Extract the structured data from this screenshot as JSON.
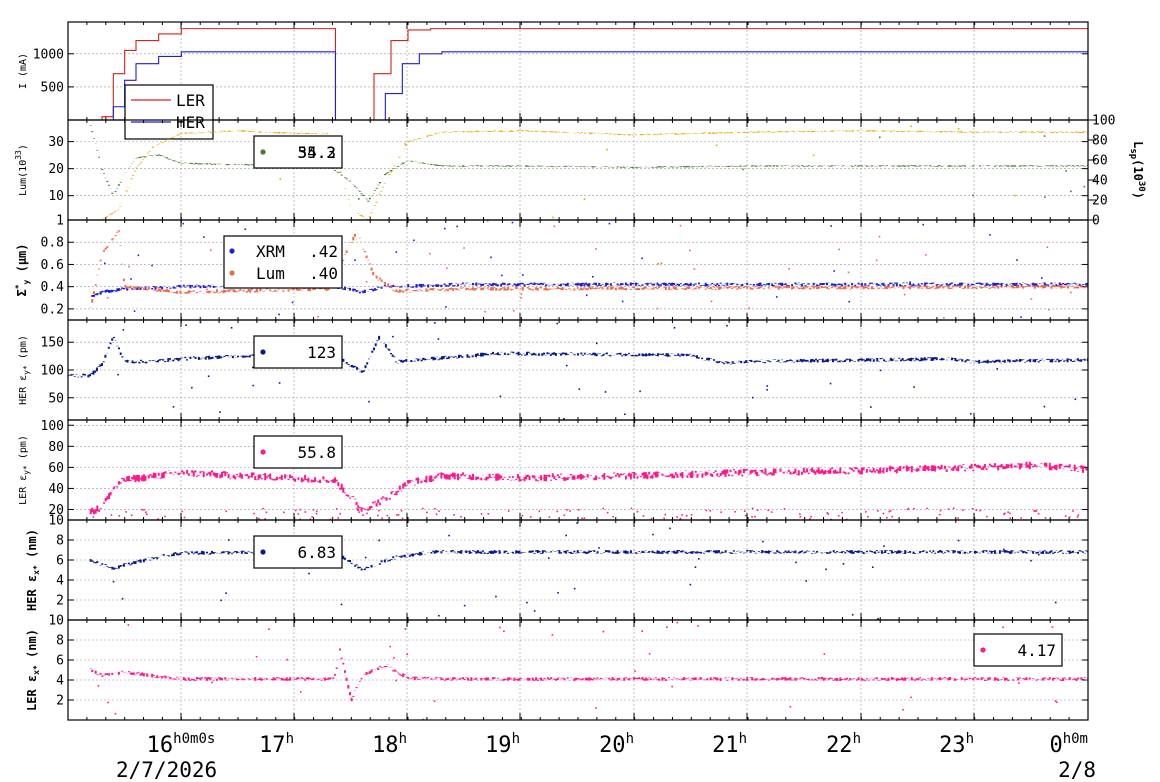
{
  "chart_data": {
    "type": "line",
    "x_axis": {
      "ticks": [
        {
          "h": "16",
          "sup": "h0m0s"
        },
        {
          "h": "17",
          "sup": "h"
        },
        {
          "h": "18",
          "sup": "h"
        },
        {
          "h": "19",
          "sup": "h"
        },
        {
          "h": "20",
          "sup": "h"
        },
        {
          "h": "21",
          "sup": "h"
        },
        {
          "h": "22",
          "sup": "h"
        },
        {
          "h": "23",
          "sup": "h"
        },
        {
          "h": "0",
          "sup": "h0m"
        }
      ],
      "start_date": "2/7/2026",
      "end_date": "2/8",
      "range": [
        "2026-02-07 15:00",
        "2026-02-08 00:00"
      ]
    },
    "panels": [
      {
        "id": "current",
        "ylabel": "I (mA)",
        "ylim": [
          0,
          1480
        ],
        "yticks": [
          "500",
          "1000"
        ],
        "ytick_values": [
          500,
          1000
        ],
        "legend": [
          {
            "name": "LER",
            "color": "#d62020"
          },
          {
            "name": "HER",
            "color": "#1f1fd6"
          }
        ],
        "series": [
          {
            "name": "LER",
            "color": "#d62020",
            "points": [
              [
                15.2,
                0
              ],
              [
                15.3,
                50
              ],
              [
                15.4,
                700
              ],
              [
                15.5,
                1050
              ],
              [
                15.6,
                1200
              ],
              [
                15.8,
                1300
              ],
              [
                16.0,
                1380
              ],
              [
                17.35,
                1380
              ],
              [
                17.36,
                0
              ],
              [
                17.6,
                0
              ],
              [
                17.7,
                700
              ],
              [
                17.85,
                1200
              ],
              [
                18.0,
                1360
              ],
              [
                18.2,
                1380
              ],
              [
                24.0,
                1380
              ]
            ]
          },
          {
            "name": "HER",
            "color": "#1f1fd6",
            "points": [
              [
                15.2,
                0
              ],
              [
                15.4,
                200
              ],
              [
                15.5,
                600
              ],
              [
                15.6,
                850
              ],
              [
                15.8,
                960
              ],
              [
                16.0,
                1030
              ],
              [
                17.35,
                1030
              ],
              [
                17.36,
                0
              ],
              [
                17.7,
                0
              ],
              [
                17.8,
                400
              ],
              [
                17.95,
                850
              ],
              [
                18.1,
                1000
              ],
              [
                18.3,
                1030
              ],
              [
                24.0,
                1030
              ]
            ]
          }
        ]
      },
      {
        "id": "lum",
        "ylabel": "Lum(10",
        "ylabel_sup": "33",
        "ylabel_tail": ")",
        "ylim": [
          1,
          38
        ],
        "yticks": [
          "1",
          "10",
          "20",
          "30"
        ],
        "ytick_values": [
          1,
          10,
          20,
          30
        ],
        "y2label": "L",
        "y2label_sub": "sp",
        "y2label_mid": "(10",
        "y2label_sup": "30",
        "y2label_tail": ")",
        "y2lim": [
          0,
          100
        ],
        "y2ticks": [
          "0",
          "20",
          "40",
          "60",
          "80",
          "100"
        ],
        "y2tick_values": [
          0,
          20,
          40,
          60,
          80,
          100
        ],
        "legend": [
          {
            "value": "34.3",
            "color": "#e6a800"
          },
          {
            "value": "55.2",
            "color": "#4a7a3a"
          }
        ],
        "series": [
          {
            "name": "lum",
            "color": "#e6a800",
            "points": [
              [
                15.3,
                1
              ],
              [
                15.45,
                5
              ],
              [
                15.6,
                20
              ],
              [
                15.75,
                28
              ],
              [
                16.0,
                33
              ],
              [
                16.5,
                34
              ],
              [
                17.0,
                33
              ],
              [
                17.3,
                33
              ],
              [
                17.5,
                5
              ],
              [
                17.65,
                1
              ],
              [
                17.8,
                15
              ],
              [
                18.0,
                30
              ],
              [
                18.3,
                33.5
              ],
              [
                19.0,
                34
              ],
              [
                20.0,
                32.5
              ],
              [
                21.0,
                33.5
              ],
              [
                22.0,
                34
              ],
              [
                23.0,
                33.5
              ],
              [
                24.0,
                33.5
              ]
            ]
          },
          {
            "name": "specific",
            "color": "#4a7a3a",
            "points": [
              [
                15.2,
                36
              ],
              [
                15.3,
                20
              ],
              [
                15.4,
                10
              ],
              [
                15.5,
                18
              ],
              [
                15.6,
                24
              ],
              [
                15.8,
                25
              ],
              [
                16.0,
                22
              ],
              [
                17.0,
                21
              ],
              [
                17.3,
                21
              ],
              [
                17.5,
                15
              ],
              [
                17.65,
                8
              ],
              [
                17.8,
                18
              ],
              [
                18.0,
                23
              ],
              [
                18.3,
                21
              ],
              [
                19.0,
                21
              ],
              [
                20.0,
                20.5
              ],
              [
                21.0,
                21
              ],
              [
                22.0,
                21
              ],
              [
                23.0,
                21
              ],
              [
                24.0,
                21
              ]
            ]
          }
        ]
      },
      {
        "id": "sigma",
        "ylabel": "Σ",
        "ylabel_sup": "*",
        "ylabel_sub": "y",
        "ylabel_tail": " (μm)",
        "ylim": [
          0.1,
          1.0
        ],
        "yticks": [
          "0.2",
          "0.4",
          "0.6",
          "0.8"
        ],
        "ytick_values": [
          0.2,
          0.4,
          0.6,
          0.8
        ],
        "legend": [
          {
            "name": "XRM",
            "value": ".42",
            "color": "#1f1fd6"
          },
          {
            "name": "Lum",
            "value": ".40",
            "color": "#f06a4a"
          }
        ],
        "series": [
          {
            "name": "XRM",
            "color": "#1f1fd6",
            "points": [
              [
                15.2,
                0.3
              ],
              [
                15.3,
                0.35
              ],
              [
                15.5,
                0.38
              ],
              [
                16.0,
                0.4
              ],
              [
                17.3,
                0.41
              ],
              [
                17.6,
                0.35
              ],
              [
                17.8,
                0.4
              ],
              [
                18.5,
                0.42
              ],
              [
                24.0,
                0.42
              ]
            ]
          },
          {
            "name": "Lum",
            "color": "#f06a4a",
            "points": [
              [
                15.2,
                0.2
              ],
              [
                15.3,
                0.7
              ],
              [
                15.45,
                0.9
              ],
              [
                15.5,
                0.4
              ],
              [
                16.0,
                0.35
              ],
              [
                17.3,
                0.38
              ],
              [
                17.55,
                0.9
              ],
              [
                17.7,
                0.5
              ],
              [
                17.9,
                0.36
              ],
              [
                18.5,
                0.38
              ],
              [
                24.0,
                0.4
              ]
            ]
          }
        ]
      },
      {
        "id": "her_ey",
        "ylabel": "HER ε",
        "ylabel_sub": "y*",
        "ylabel_tail": " (pm)",
        "ylim": [
          10,
          190
        ],
        "yticks": [
          "50",
          "100",
          "150"
        ],
        "ytick_values": [
          50,
          100,
          150
        ],
        "legend": [
          {
            "value": "123",
            "color": "#0a1a8a"
          }
        ],
        "series": [
          {
            "name": "HER εy",
            "color": "#0a1a8a",
            "points": [
              [
                15.0,
                90
              ],
              [
                15.2,
                90
              ],
              [
                15.3,
                110
              ],
              [
                15.4,
                160
              ],
              [
                15.5,
                115
              ],
              [
                15.7,
                115
              ],
              [
                16.0,
                120
              ],
              [
                16.5,
                125
              ],
              [
                17.0,
                125
              ],
              [
                17.35,
                128
              ],
              [
                17.6,
                95
              ],
              [
                17.75,
                160
              ],
              [
                17.9,
                115
              ],
              [
                18.2,
                120
              ],
              [
                18.8,
                130
              ],
              [
                19.5,
                128
              ],
              [
                20.0,
                128
              ],
              [
                20.5,
                126
              ],
              [
                20.8,
                112
              ],
              [
                21.0,
                115
              ],
              [
                22.0,
                118
              ],
              [
                22.8,
                120
              ],
              [
                23.0,
                115
              ],
              [
                24.0,
                118
              ]
            ]
          }
        ]
      },
      {
        "id": "ler_ey",
        "ylabel": "LER ε",
        "ylabel_sub": "y*",
        "ylabel_tail": " (pm)",
        "ylim": [
          10,
          105
        ],
        "yticks": [
          "10",
          "20",
          "40",
          "60",
          "80",
          "100"
        ],
        "ytick_values": [
          10,
          20,
          40,
          60,
          80,
          100
        ],
        "legend": [
          {
            "value": "55.8",
            "color": "#ff1a8c"
          }
        ],
        "series": [
          {
            "name": "LER εy",
            "color": "#ff1a8c",
            "points": [
              [
                15.2,
                18
              ],
              [
                15.3,
                22
              ],
              [
                15.4,
                40
              ],
              [
                15.5,
                48
              ],
              [
                16.0,
                55
              ],
              [
                16.5,
                52
              ],
              [
                17.0,
                50
              ],
              [
                17.35,
                48
              ],
              [
                17.6,
                20
              ],
              [
                17.8,
                30
              ],
              [
                18.0,
                45
              ],
              [
                18.3,
                52
              ],
              [
                19.0,
                50
              ],
              [
                20.0,
                52
              ],
              [
                21.0,
                55
              ],
              [
                22.0,
                57
              ],
              [
                23.0,
                60
              ],
              [
                23.5,
                62
              ],
              [
                24.0,
                58
              ]
            ]
          }
        ]
      },
      {
        "id": "her_ex",
        "ylabel": "HER ε",
        "ylabel_sub": "x*",
        "ylabel_tail": " (nm)",
        "ylim": [
          0,
          10
        ],
        "yticks": [
          "2",
          "4",
          "6",
          "8"
        ],
        "ytick_values": [
          2,
          4,
          6,
          8
        ],
        "legend": [
          {
            "value": "6.83",
            "color": "#0a1a8a"
          }
        ],
        "series": [
          {
            "name": "HER εx",
            "color": "#0a1a8a",
            "points": [
              [
                15.2,
                6.0
              ],
              [
                15.3,
                5.5
              ],
              [
                15.4,
                5.2
              ],
              [
                15.6,
                5.8
              ],
              [
                15.8,
                6.3
              ],
              [
                16.0,
                6.7
              ],
              [
                17.35,
                6.8
              ],
              [
                17.6,
                5.0
              ],
              [
                17.7,
                5.5
              ],
              [
                17.9,
                6.3
              ],
              [
                18.2,
                6.8
              ],
              [
                24.0,
                6.8
              ]
            ]
          }
        ]
      },
      {
        "id": "ler_ex",
        "ylabel": "LER ε",
        "ylabel_sub": "x*",
        "ylabel_tail": " (nm)",
        "ylim": [
          0,
          10
        ],
        "yticks": [
          "2",
          "4",
          "6",
          "8",
          "10"
        ],
        "ytick_values": [
          2,
          4,
          6,
          8,
          10
        ],
        "legend": [
          {
            "value": "4.17",
            "color": "#ff1a8c"
          }
        ],
        "series": [
          {
            "name": "LER εx",
            "color": "#ff1a8c",
            "points": [
              [
                15.2,
                5.0
              ],
              [
                15.3,
                4.5
              ],
              [
                15.5,
                4.8
              ],
              [
                15.7,
                4.5
              ],
              [
                16.0,
                4.1
              ],
              [
                17.35,
                4.1
              ],
              [
                17.4,
                7.0
              ],
              [
                17.5,
                2.0
              ],
              [
                17.6,
                4.5
              ],
              [
                17.8,
                5.5
              ],
              [
                18.0,
                4.2
              ],
              [
                18.3,
                4.1
              ],
              [
                24.0,
                4.1
              ]
            ]
          }
        ]
      }
    ]
  }
}
